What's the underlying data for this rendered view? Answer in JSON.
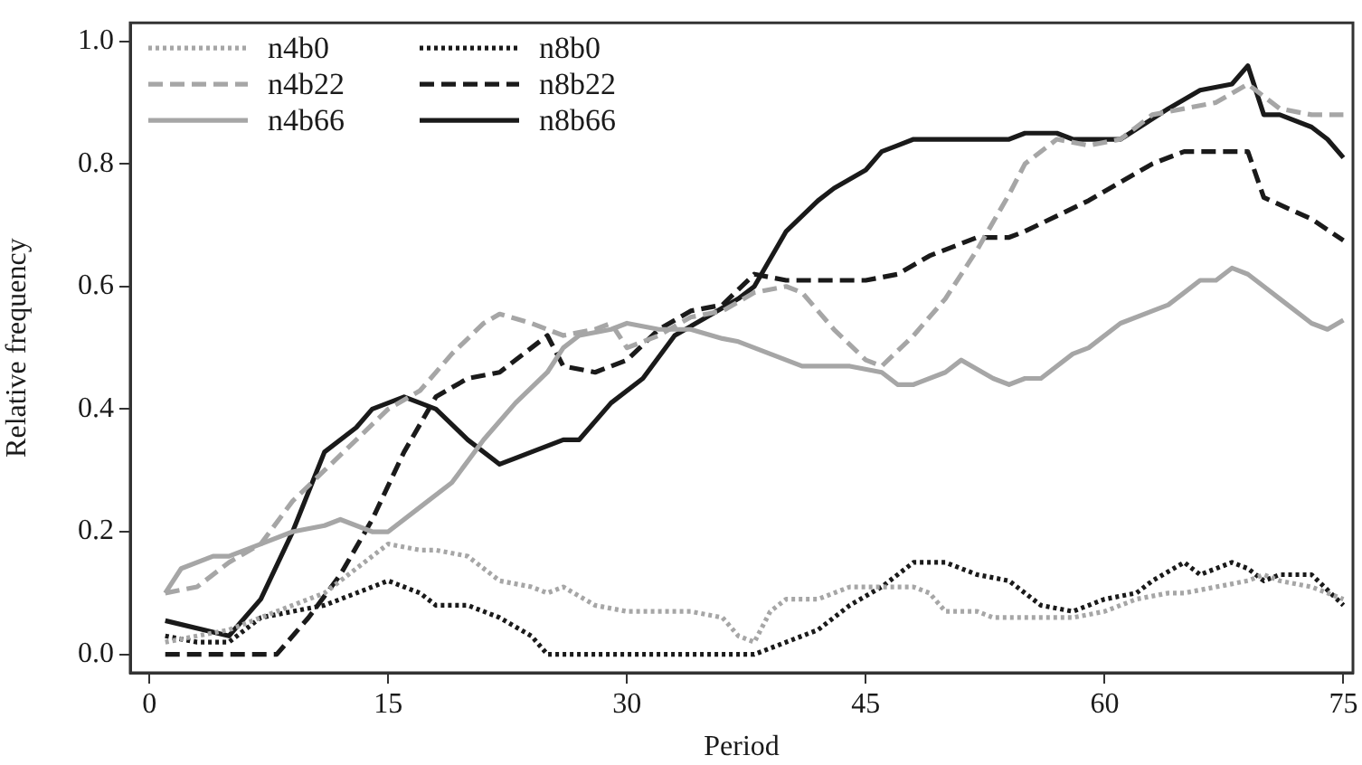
{
  "chart_data": {
    "type": "line",
    "xlabel": "Period",
    "ylabel": "Relative frequency",
    "xlim": [
      -1.2,
      75.6
    ],
    "xticks": [
      0,
      15,
      30,
      45,
      60,
      75
    ],
    "ylim": [
      -0.03,
      1.03
    ],
    "yticks": [
      {
        "value": 0,
        "label": "0.0"
      },
      {
        "value": 0.2,
        "label": "0.2"
      },
      {
        "value": 0.4,
        "label": "0.4"
      },
      {
        "value": 0.6,
        "label": "0.6"
      },
      {
        "value": 0.8,
        "label": "0.8"
      },
      {
        "value": 1,
        "label": "1.0"
      }
    ],
    "grid": false,
    "legend": "top left",
    "marker": "none",
    "series": [
      {
        "name": "n4b0",
        "color": "#a6a6a6",
        "line_style": "dotted",
        "x": [
          1,
          3,
          5,
          7,
          9,
          11,
          13,
          15,
          17,
          18,
          20,
          22,
          24,
          25,
          26,
          28,
          30,
          32,
          34,
          36,
          37,
          38,
          39,
          40,
          42,
          44,
          46,
          48,
          49,
          50,
          52,
          53,
          55,
          58,
          60,
          62,
          64,
          65,
          67,
          69,
          70,
          71,
          73,
          75
        ],
        "values": [
          0.02,
          0.03,
          0.04,
          0.06,
          0.08,
          0.1,
          0.14,
          0.18,
          0.17,
          0.17,
          0.16,
          0.12,
          0.11,
          0.1,
          0.11,
          0.08,
          0.07,
          0.07,
          0.07,
          0.06,
          0.03,
          0.02,
          0.07,
          0.09,
          0.09,
          0.11,
          0.11,
          0.11,
          0.1,
          0.07,
          0.07,
          0.06,
          0.06,
          0.06,
          0.07,
          0.09,
          0.1,
          0.1,
          0.11,
          0.12,
          0.13,
          0.12,
          0.11,
          0.09
        ]
      },
      {
        "name": "n4b22",
        "color": "#a6a6a6",
        "line_style": "dashed",
        "x": [
          1,
          3,
          5,
          7,
          9,
          11,
          13,
          15,
          17,
          19,
          21,
          22,
          24,
          26,
          28,
          29,
          30,
          32,
          34,
          36,
          38,
          40,
          41,
          43,
          45,
          46,
          48,
          50,
          52,
          54,
          55,
          57,
          59,
          61,
          63,
          65,
          67,
          69,
          71,
          73,
          75
        ],
        "values": [
          0.1,
          0.11,
          0.15,
          0.18,
          0.25,
          0.3,
          0.35,
          0.4,
          0.43,
          0.49,
          0.54,
          0.555,
          0.54,
          0.52,
          0.53,
          0.54,
          0.5,
          0.52,
          0.55,
          0.56,
          0.59,
          0.6,
          0.59,
          0.53,
          0.48,
          0.47,
          0.52,
          0.58,
          0.66,
          0.75,
          0.8,
          0.84,
          0.83,
          0.84,
          0.88,
          0.89,
          0.9,
          0.93,
          0.89,
          0.88,
          0.88
        ]
      },
      {
        "name": "n4b66",
        "color": "#a6a6a6",
        "line_style": "solid",
        "x": [
          1,
          2,
          4,
          5,
          7,
          9,
          11,
          12,
          14,
          15,
          17,
          19,
          21,
          23,
          25,
          26,
          27,
          29,
          30,
          32,
          34,
          36,
          37,
          39,
          41,
          44,
          46,
          47,
          48,
          50,
          51,
          53,
          54,
          55,
          56,
          58,
          59,
          61,
          63,
          64,
          65,
          66,
          67,
          68,
          69,
          70,
          71,
          73,
          74,
          75
        ],
        "values": [
          0.1,
          0.14,
          0.16,
          0.16,
          0.18,
          0.2,
          0.21,
          0.22,
          0.2,
          0.2,
          0.24,
          0.28,
          0.35,
          0.41,
          0.46,
          0.5,
          0.52,
          0.53,
          0.54,
          0.53,
          0.53,
          0.515,
          0.51,
          0.49,
          0.47,
          0.47,
          0.46,
          0.44,
          0.44,
          0.46,
          0.48,
          0.45,
          0.44,
          0.45,
          0.45,
          0.49,
          0.5,
          0.54,
          0.56,
          0.57,
          0.59,
          0.61,
          0.61,
          0.63,
          0.62,
          0.6,
          0.58,
          0.54,
          0.53,
          0.545
        ]
      },
      {
        "name": "n8b0",
        "color": "#1a1a1a",
        "line_style": "dotted",
        "x": [
          1,
          3,
          5,
          7,
          9,
          11,
          13,
          15,
          17,
          18,
          20,
          22,
          24,
          25,
          37,
          38,
          40,
          42,
          44,
          46,
          48,
          50,
          52,
          54,
          56,
          58,
          60,
          62,
          63,
          65,
          66,
          68,
          69,
          70,
          71,
          73,
          75
        ],
        "values": [
          0.03,
          0.02,
          0.02,
          0.06,
          0.07,
          0.08,
          0.1,
          0.12,
          0.1,
          0.08,
          0.08,
          0.06,
          0.03,
          0,
          0,
          0,
          0.02,
          0.04,
          0.08,
          0.11,
          0.15,
          0.15,
          0.13,
          0.12,
          0.08,
          0.07,
          0.09,
          0.1,
          0.12,
          0.15,
          0.13,
          0.15,
          0.14,
          0.12,
          0.13,
          0.13,
          0.08
        ]
      },
      {
        "name": "n8b22",
        "color": "#1a1a1a",
        "line_style": "dashed",
        "x": [
          1,
          8,
          10,
          12,
          14,
          16,
          18,
          20,
          22,
          24,
          25,
          26,
          28,
          30,
          32,
          34,
          36,
          38,
          40,
          41,
          45,
          47,
          49,
          52,
          54,
          55,
          59,
          63,
          65,
          69,
          70,
          73,
          75
        ],
        "values": [
          0,
          0,
          0.06,
          0.13,
          0.22,
          0.33,
          0.42,
          0.45,
          0.46,
          0.5,
          0.52,
          0.47,
          0.46,
          0.48,
          0.53,
          0.56,
          0.57,
          0.62,
          0.61,
          0.61,
          0.61,
          0.62,
          0.65,
          0.68,
          0.68,
          0.69,
          0.74,
          0.8,
          0.82,
          0.82,
          0.745,
          0.71,
          0.675
        ]
      },
      {
        "name": "n8b66",
        "color": "#1a1a1a",
        "line_style": "solid",
        "x": [
          1,
          5,
          7,
          9,
          11,
          13,
          14,
          16,
          18,
          20,
          22,
          24,
          26,
          27,
          29,
          31,
          33,
          35,
          37,
          38,
          40,
          42,
          43,
          45,
          46,
          47,
          48,
          54,
          55,
          57,
          58,
          59,
          61,
          64,
          66,
          68,
          69,
          70,
          71,
          73,
          74,
          75
        ],
        "values": [
          0.055,
          0.03,
          0.09,
          0.2,
          0.33,
          0.37,
          0.4,
          0.42,
          0.4,
          0.35,
          0.31,
          0.33,
          0.35,
          0.35,
          0.41,
          0.45,
          0.52,
          0.55,
          0.58,
          0.6,
          0.69,
          0.74,
          0.76,
          0.79,
          0.82,
          0.83,
          0.84,
          0.84,
          0.85,
          0.85,
          0.84,
          0.84,
          0.84,
          0.89,
          0.92,
          0.93,
          0.96,
          0.88,
          0.88,
          0.86,
          0.84,
          0.81
        ]
      }
    ]
  }
}
